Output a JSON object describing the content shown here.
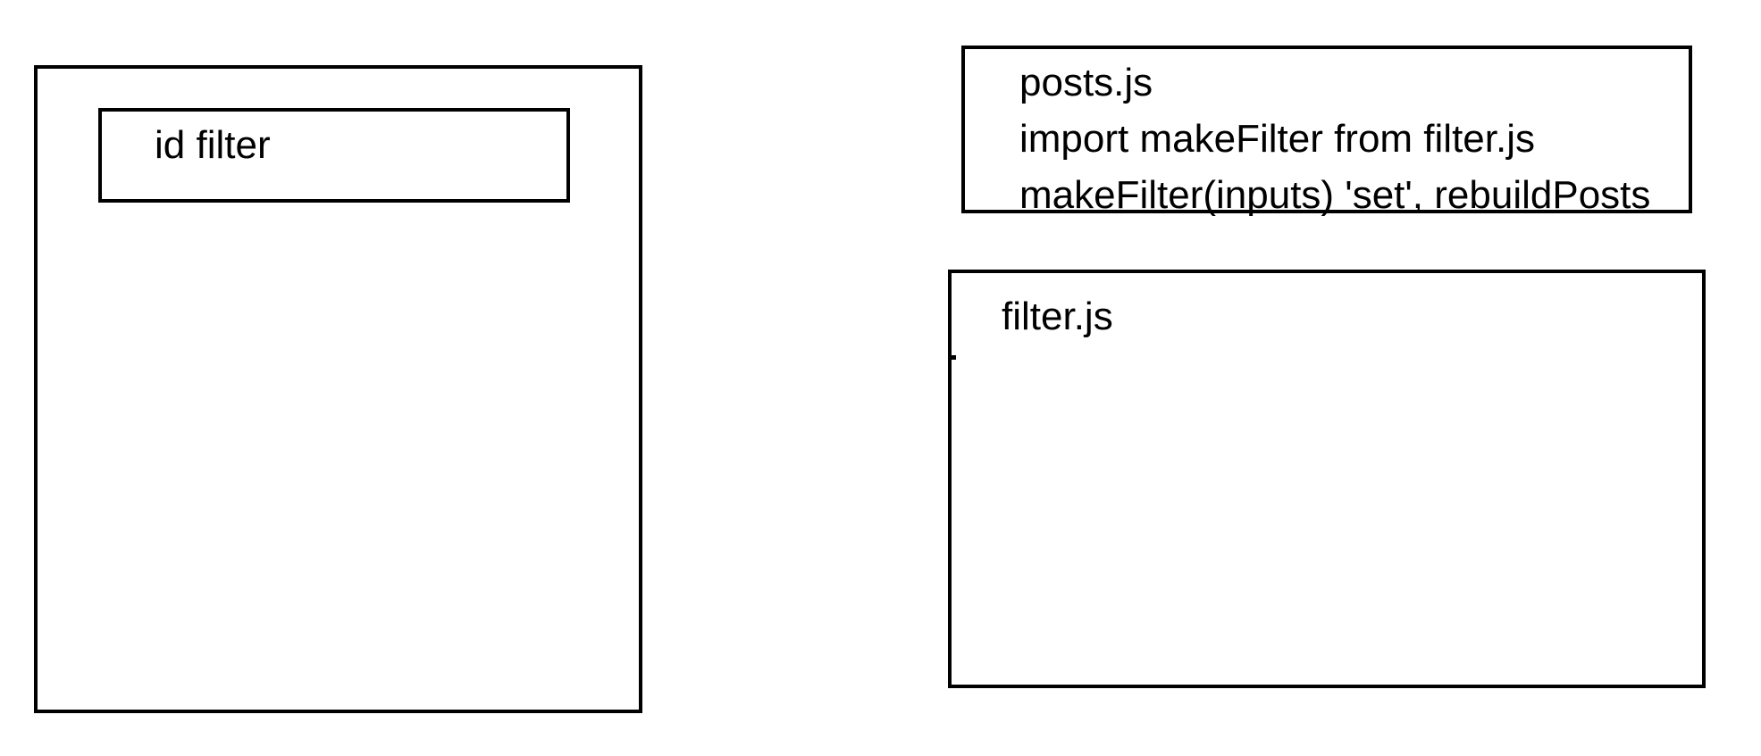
{
  "left_panel": {
    "filter_label": "id filter"
  },
  "posts_module": {
    "filename": "posts.js",
    "import_line": "import makeFilter from filter.js",
    "call_line": "makeFilter(inputs)  'set', rebuildPosts"
  },
  "filter_module": {
    "filename": "filter.js"
  }
}
